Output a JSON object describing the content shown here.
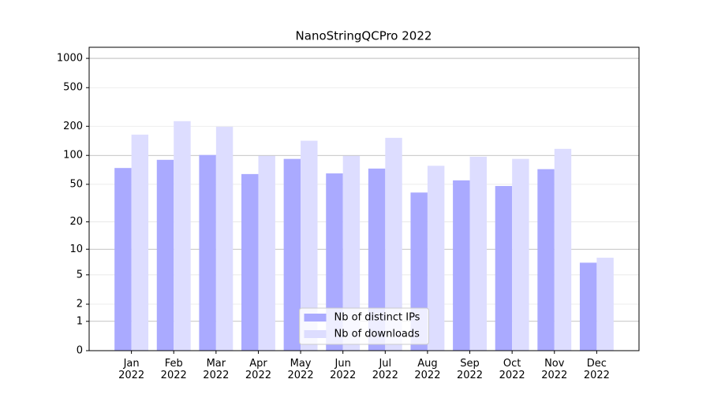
{
  "chart_data": {
    "type": "bar",
    "title": "NanoStringQCPro 2022",
    "categories": [
      "Jan\n2022",
      "Feb\n2022",
      "Mar\n2022",
      "Apr\n2022",
      "May\n2022",
      "Jun\n2022",
      "Jul\n2022",
      "Aug\n2022",
      "Sep\n2022",
      "Oct\n2022",
      "Nov\n2022",
      "Dec\n2022"
    ],
    "series": [
      {
        "name": "Nb of distinct IPs",
        "color": "#aaaaff",
        "values": [
          74,
          90,
          101,
          64,
          92,
          65,
          73,
          41,
          55,
          48,
          72,
          7
        ]
      },
      {
        "name": "Nb of downloads",
        "color": "#ddddff",
        "values": [
          164,
          226,
          198,
          99,
          142,
          99,
          152,
          78,
          97,
          92,
          117,
          8
        ]
      }
    ],
    "yscale": "log1p",
    "ylim": [
      0,
      1300
    ],
    "yticks": [
      0,
      1,
      2,
      5,
      10,
      20,
      50,
      100,
      200,
      500,
      1000
    ],
    "grid": true,
    "legend": "lower center"
  }
}
